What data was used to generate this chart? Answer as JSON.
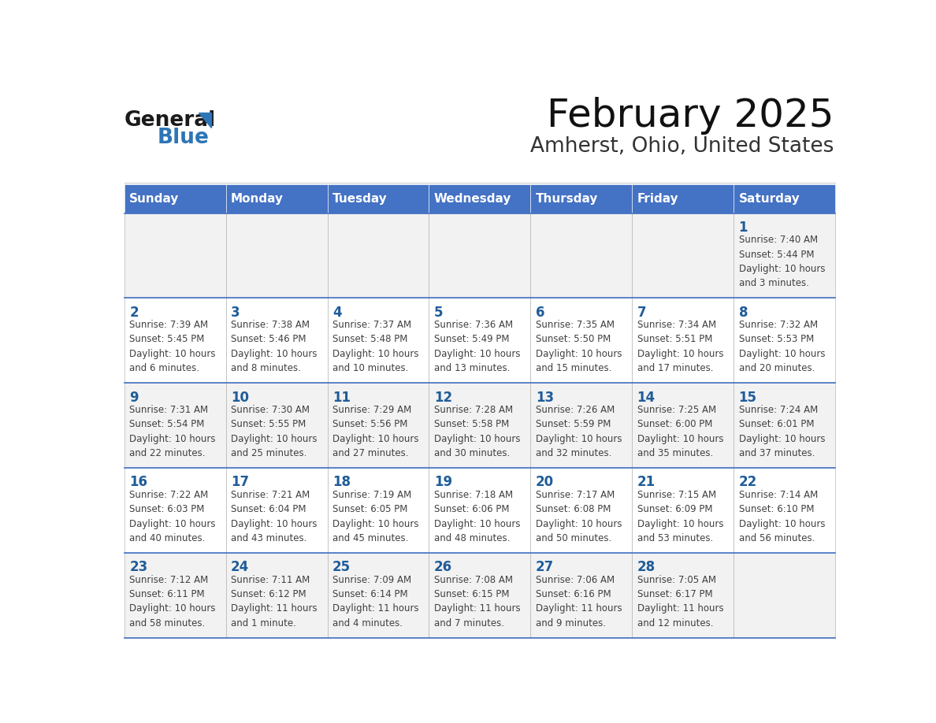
{
  "title": "February 2025",
  "subtitle": "Amherst, Ohio, United States",
  "header_color": "#4472C4",
  "header_text_color": "#FFFFFF",
  "day_names": [
    "Sunday",
    "Monday",
    "Tuesday",
    "Wednesday",
    "Thursday",
    "Friday",
    "Saturday"
  ],
  "background_color": "#FFFFFF",
  "cell_bg_even": "#F2F2F2",
  "cell_bg_odd": "#FFFFFF",
  "date_color": "#1F5C99",
  "info_color": "#404040",
  "grid_color": "#AAAAAA",
  "logo_general_color": "#1A1A1A",
  "logo_blue_color": "#2E75B6",
  "days": [
    {
      "date": 1,
      "col": 6,
      "row": 0,
      "sunrise": "7:40 AM",
      "sunset": "5:44 PM",
      "daylight_line1": "Daylight: 10 hours",
      "daylight_line2": "and 3 minutes."
    },
    {
      "date": 2,
      "col": 0,
      "row": 1,
      "sunrise": "7:39 AM",
      "sunset": "5:45 PM",
      "daylight_line1": "Daylight: 10 hours",
      "daylight_line2": "and 6 minutes."
    },
    {
      "date": 3,
      "col": 1,
      "row": 1,
      "sunrise": "7:38 AM",
      "sunset": "5:46 PM",
      "daylight_line1": "Daylight: 10 hours",
      "daylight_line2": "and 8 minutes."
    },
    {
      "date": 4,
      "col": 2,
      "row": 1,
      "sunrise": "7:37 AM",
      "sunset": "5:48 PM",
      "daylight_line1": "Daylight: 10 hours",
      "daylight_line2": "and 10 minutes."
    },
    {
      "date": 5,
      "col": 3,
      "row": 1,
      "sunrise": "7:36 AM",
      "sunset": "5:49 PM",
      "daylight_line1": "Daylight: 10 hours",
      "daylight_line2": "and 13 minutes."
    },
    {
      "date": 6,
      "col": 4,
      "row": 1,
      "sunrise": "7:35 AM",
      "sunset": "5:50 PM",
      "daylight_line1": "Daylight: 10 hours",
      "daylight_line2": "and 15 minutes."
    },
    {
      "date": 7,
      "col": 5,
      "row": 1,
      "sunrise": "7:34 AM",
      "sunset": "5:51 PM",
      "daylight_line1": "Daylight: 10 hours",
      "daylight_line2": "and 17 minutes."
    },
    {
      "date": 8,
      "col": 6,
      "row": 1,
      "sunrise": "7:32 AM",
      "sunset": "5:53 PM",
      "daylight_line1": "Daylight: 10 hours",
      "daylight_line2": "and 20 minutes."
    },
    {
      "date": 9,
      "col": 0,
      "row": 2,
      "sunrise": "7:31 AM",
      "sunset": "5:54 PM",
      "daylight_line1": "Daylight: 10 hours",
      "daylight_line2": "and 22 minutes."
    },
    {
      "date": 10,
      "col": 1,
      "row": 2,
      "sunrise": "7:30 AM",
      "sunset": "5:55 PM",
      "daylight_line1": "Daylight: 10 hours",
      "daylight_line2": "and 25 minutes."
    },
    {
      "date": 11,
      "col": 2,
      "row": 2,
      "sunrise": "7:29 AM",
      "sunset": "5:56 PM",
      "daylight_line1": "Daylight: 10 hours",
      "daylight_line2": "and 27 minutes."
    },
    {
      "date": 12,
      "col": 3,
      "row": 2,
      "sunrise": "7:28 AM",
      "sunset": "5:58 PM",
      "daylight_line1": "Daylight: 10 hours",
      "daylight_line2": "and 30 minutes."
    },
    {
      "date": 13,
      "col": 4,
      "row": 2,
      "sunrise": "7:26 AM",
      "sunset": "5:59 PM",
      "daylight_line1": "Daylight: 10 hours",
      "daylight_line2": "and 32 minutes."
    },
    {
      "date": 14,
      "col": 5,
      "row": 2,
      "sunrise": "7:25 AM",
      "sunset": "6:00 PM",
      "daylight_line1": "Daylight: 10 hours",
      "daylight_line2": "and 35 minutes."
    },
    {
      "date": 15,
      "col": 6,
      "row": 2,
      "sunrise": "7:24 AM",
      "sunset": "6:01 PM",
      "daylight_line1": "Daylight: 10 hours",
      "daylight_line2": "and 37 minutes."
    },
    {
      "date": 16,
      "col": 0,
      "row": 3,
      "sunrise": "7:22 AM",
      "sunset": "6:03 PM",
      "daylight_line1": "Daylight: 10 hours",
      "daylight_line2": "and 40 minutes."
    },
    {
      "date": 17,
      "col": 1,
      "row": 3,
      "sunrise": "7:21 AM",
      "sunset": "6:04 PM",
      "daylight_line1": "Daylight: 10 hours",
      "daylight_line2": "and 43 minutes."
    },
    {
      "date": 18,
      "col": 2,
      "row": 3,
      "sunrise": "7:19 AM",
      "sunset": "6:05 PM",
      "daylight_line1": "Daylight: 10 hours",
      "daylight_line2": "and 45 minutes."
    },
    {
      "date": 19,
      "col": 3,
      "row": 3,
      "sunrise": "7:18 AM",
      "sunset": "6:06 PM",
      "daylight_line1": "Daylight: 10 hours",
      "daylight_line2": "and 48 minutes."
    },
    {
      "date": 20,
      "col": 4,
      "row": 3,
      "sunrise": "7:17 AM",
      "sunset": "6:08 PM",
      "daylight_line1": "Daylight: 10 hours",
      "daylight_line2": "and 50 minutes."
    },
    {
      "date": 21,
      "col": 5,
      "row": 3,
      "sunrise": "7:15 AM",
      "sunset": "6:09 PM",
      "daylight_line1": "Daylight: 10 hours",
      "daylight_line2": "and 53 minutes."
    },
    {
      "date": 22,
      "col": 6,
      "row": 3,
      "sunrise": "7:14 AM",
      "sunset": "6:10 PM",
      "daylight_line1": "Daylight: 10 hours",
      "daylight_line2": "and 56 minutes."
    },
    {
      "date": 23,
      "col": 0,
      "row": 4,
      "sunrise": "7:12 AM",
      "sunset": "6:11 PM",
      "daylight_line1": "Daylight: 10 hours",
      "daylight_line2": "and 58 minutes."
    },
    {
      "date": 24,
      "col": 1,
      "row": 4,
      "sunrise": "7:11 AM",
      "sunset": "6:12 PM",
      "daylight_line1": "Daylight: 11 hours",
      "daylight_line2": "and 1 minute."
    },
    {
      "date": 25,
      "col": 2,
      "row": 4,
      "sunrise": "7:09 AM",
      "sunset": "6:14 PM",
      "daylight_line1": "Daylight: 11 hours",
      "daylight_line2": "and 4 minutes."
    },
    {
      "date": 26,
      "col": 3,
      "row": 4,
      "sunrise": "7:08 AM",
      "sunset": "6:15 PM",
      "daylight_line1": "Daylight: 11 hours",
      "daylight_line2": "and 7 minutes."
    },
    {
      "date": 27,
      "col": 4,
      "row": 4,
      "sunrise": "7:06 AM",
      "sunset": "6:16 PM",
      "daylight_line1": "Daylight: 11 hours",
      "daylight_line2": "and 9 minutes."
    },
    {
      "date": 28,
      "col": 5,
      "row": 4,
      "sunrise": "7:05 AM",
      "sunset": "6:17 PM",
      "daylight_line1": "Daylight: 11 hours",
      "daylight_line2": "and 12 minutes."
    }
  ]
}
